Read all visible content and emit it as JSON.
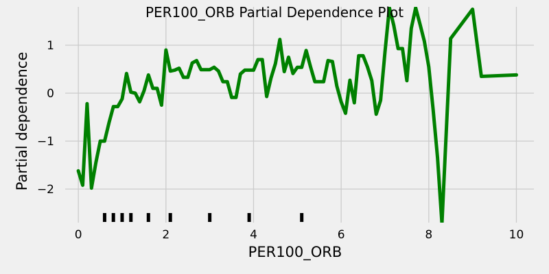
{
  "chart_data": {
    "type": "line",
    "title": "PER100_ORB Partial Dependence Plot",
    "xlabel": "PER100_ORB",
    "ylabel": "Partial dependence",
    "xlim": [
      -0.3,
      10.4
    ],
    "ylim": [
      -2.7,
      1.8
    ],
    "xticks": [
      0,
      2,
      4,
      6,
      8,
      10
    ],
    "xtick_labels": [
      "0",
      "2",
      "4",
      "6",
      "8",
      "10"
    ],
    "yticks": [
      -2,
      -1,
      0,
      1
    ],
    "ytick_labels": [
      "−2",
      "−1",
      "0",
      "1"
    ],
    "grid": true,
    "series": [
      {
        "color": "#008000",
        "x": [
          0.0,
          0.1,
          0.2,
          0.3,
          0.4,
          0.5,
          0.6,
          0.7,
          0.8,
          0.9,
          1.0,
          1.1,
          1.2,
          1.3,
          1.4,
          1.5,
          1.6,
          1.7,
          1.8,
          1.9,
          2.0,
          2.1,
          2.2,
          2.3,
          2.4,
          2.5,
          2.6,
          2.7,
          2.8,
          2.9,
          3.0,
          3.1,
          3.2,
          3.3,
          3.4,
          3.5,
          3.6,
          3.7,
          3.8,
          3.9,
          4.0,
          4.1,
          4.2,
          4.3,
          4.4,
          4.5,
          4.6,
          4.7,
          4.8,
          4.9,
          5.0,
          5.1,
          5.2,
          5.3,
          5.4,
          5.5,
          5.6,
          5.7,
          5.8,
          5.9,
          6.0,
          6.1,
          6.2,
          6.3,
          6.4,
          6.5,
          6.6,
          6.7,
          6.8,
          6.9,
          7.0,
          7.1,
          7.2,
          7.3,
          7.4,
          7.5,
          7.6,
          7.7,
          7.8,
          7.9,
          8.0,
          8.1,
          8.2,
          8.3,
          8.5,
          9.0,
          9.2,
          10.0
        ],
        "y": [
          -1.62,
          -1.92,
          -0.22,
          -1.98,
          -1.45,
          -1.0,
          -1.0,
          -0.62,
          -0.28,
          -0.28,
          -0.12,
          0.41,
          0.02,
          0.0,
          -0.18,
          0.05,
          0.38,
          0.1,
          0.1,
          -0.25,
          0.9,
          0.46,
          0.48,
          0.52,
          0.33,
          0.33,
          0.63,
          0.68,
          0.49,
          0.49,
          0.49,
          0.54,
          0.46,
          0.24,
          0.24,
          -0.09,
          -0.09,
          0.4,
          0.48,
          0.48,
          0.48,
          0.7,
          0.7,
          -0.07,
          0.32,
          0.62,
          1.12,
          0.45,
          0.75,
          0.41,
          0.54,
          0.54,
          0.89,
          0.55,
          0.24,
          0.24,
          0.24,
          0.68,
          0.66,
          0.15,
          -0.18,
          -0.42,
          0.27,
          -0.2,
          0.78,
          0.78,
          0.55,
          0.26,
          -0.44,
          -0.15,
          0.86,
          1.78,
          1.42,
          0.93,
          0.93,
          0.26,
          1.35,
          1.78,
          1.44,
          1.08,
          0.55,
          -0.35,
          -1.35,
          -2.72,
          1.14,
          1.75,
          0.35,
          0.38
        ]
      }
    ],
    "rug_x": [
      0.6,
      0.8,
      1.0,
      1.2,
      1.6,
      2.1,
      3.0,
      3.9,
      5.1
    ]
  }
}
